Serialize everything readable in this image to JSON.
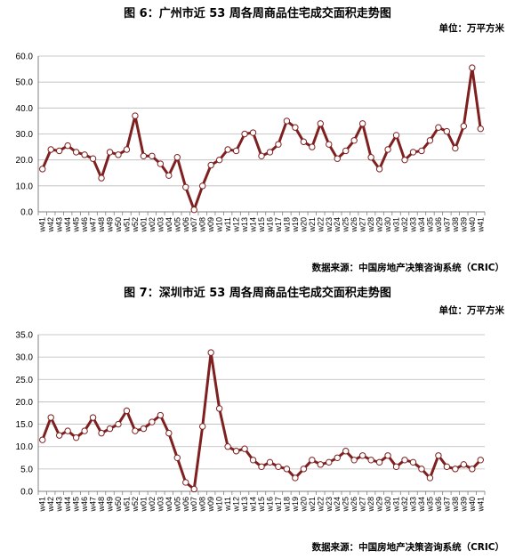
{
  "chart_data": [
    {
      "type": "line",
      "title": "图 6：广州市近 53 周各周商品住宅成交面积走势图",
      "unit": "单位：万平方米",
      "source": "数据来源：中国房地产决策咨询系统（CRIC）",
      "ylim": [
        0,
        60
      ],
      "yticks": [
        "0.0",
        "10.0",
        "20.0",
        "30.0",
        "40.0",
        "50.0",
        "60.0"
      ],
      "grid": true,
      "categories": [
        "w41",
        "w42",
        "w43",
        "w44",
        "w45",
        "w46",
        "w47",
        "w48",
        "w49",
        "w50",
        "w51",
        "w52",
        "w01",
        "w02",
        "w03",
        "w04",
        "w05",
        "w06",
        "w07",
        "w08",
        "w09",
        "w10",
        "w11",
        "w12",
        "w13",
        "w14",
        "w15",
        "w16",
        "w17",
        "w18",
        "w19",
        "w20",
        "w21",
        "w22",
        "w23",
        "w24",
        "w25",
        "w26",
        "w27",
        "w28",
        "w29",
        "w30",
        "w31",
        "w32",
        "w33",
        "w34",
        "w35",
        "w36",
        "w37",
        "w38",
        "w39",
        "w40",
        "w41"
      ],
      "values": [
        16.5,
        24.0,
        23.5,
        25.5,
        23.0,
        22.0,
        20.5,
        13.0,
        23.0,
        22.0,
        24.0,
        37.0,
        21.5,
        21.5,
        18.5,
        14.0,
        21.0,
        9.5,
        0.8,
        10.0,
        18.0,
        20.0,
        24.0,
        23.5,
        30.0,
        30.5,
        21.5,
        23.0,
        26.0,
        35.0,
        32.5,
        27.0,
        25.0,
        34.0,
        26.0,
        20.5,
        23.5,
        27.5,
        34.0,
        21.0,
        16.5,
        24.0,
        29.5,
        20.0,
        23.0,
        23.5,
        27.5,
        32.5,
        31.0,
        24.5,
        33.0,
        55.5,
        32.0
      ]
    },
    {
      "type": "line",
      "title": "图 7：深圳市近 53 周各周商品住宅成交面积走势图",
      "unit": "单位：万平方米",
      "source": "数据来源：中国房地产决策咨询系统（CRIC）",
      "ylim": [
        0,
        35
      ],
      "yticks": [
        "0.0",
        "5.0",
        "10.0",
        "15.0",
        "20.0",
        "25.0",
        "30.0",
        "35.0"
      ],
      "grid": true,
      "categories": [
        "w41",
        "w42",
        "w43",
        "w44",
        "w45",
        "w46",
        "w47",
        "w48",
        "w49",
        "w50",
        "w51",
        "w52",
        "w01",
        "w02",
        "w03",
        "w04",
        "w05",
        "w06",
        "w07",
        "w08",
        "w09",
        "w10",
        "w11",
        "w12",
        "w13",
        "w14",
        "w15",
        "w16",
        "w17",
        "w18",
        "w19",
        "w20",
        "w21",
        "w22",
        "w23",
        "w24",
        "w25",
        "w26",
        "w27",
        "w28",
        "w29",
        "w30",
        "w31",
        "w32",
        "w33",
        "w34",
        "w35",
        "w36",
        "w37",
        "w38",
        "w39",
        "w40",
        "w41"
      ],
      "values": [
        11.5,
        16.5,
        12.5,
        13.5,
        12.0,
        13.5,
        16.5,
        13.0,
        14.0,
        15.0,
        18.0,
        13.5,
        14.0,
        15.5,
        17.0,
        13.0,
        7.5,
        2.0,
        0.5,
        14.5,
        31.0,
        18.5,
        10.0,
        9.0,
        9.5,
        7.0,
        5.5,
        6.5,
        5.5,
        5.0,
        3.0,
        5.0,
        7.0,
        6.0,
        6.5,
        7.5,
        9.0,
        7.0,
        8.0,
        7.0,
        6.5,
        8.0,
        5.5,
        7.0,
        6.5,
        5.0,
        3.0,
        8.0,
        5.5,
        5.0,
        6.0,
        5.0,
        7.0
      ]
    }
  ],
  "style": {
    "line_color": "#7f2020",
    "marker_fill": "#ffffff",
    "grid_color": "#b9b9b9",
    "axis_color": "#808080"
  }
}
